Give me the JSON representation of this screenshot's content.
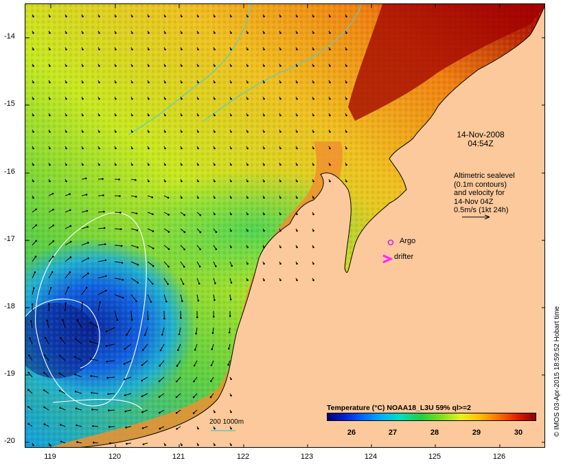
{
  "map": {
    "y_axis_labels": [
      "-14",
      "-15",
      "-16",
      "-17",
      "-18",
      "-19",
      "-20"
    ],
    "x_axis_labels": [
      "119",
      "120",
      "121",
      "122",
      "123",
      "124",
      "125",
      "126"
    ],
    "colors": {
      "land": "#fbc99b",
      "coast": "#000000",
      "contours": "#ffffff",
      "bathymetry": "#4fd0d0",
      "argo_marker": "#e020e0",
      "drifter_marker": "#ff20ff"
    }
  },
  "annotations": {
    "timestamp_line1": "14-Nov-2008",
    "timestamp_line2": "04:54Z",
    "altimetry_lines": [
      "Altimetric sealevel",
      "(0.1m contours)",
      "and velocity for",
      "14-Nov 04Z",
      "0.5m/s (1kt 24h)"
    ],
    "argo_label": "Argo",
    "drifter_label": "drifter",
    "scale_label": "200  1000m"
  },
  "colorbar": {
    "title": "Temperature (°C) NOAA18_L3U 59% ql>=2",
    "tick_labels": [
      "26",
      "27",
      "28",
      "29",
      "30"
    ]
  },
  "credit": "© IMOS 03-Apr-2015 18:59:52 Hobart time"
}
